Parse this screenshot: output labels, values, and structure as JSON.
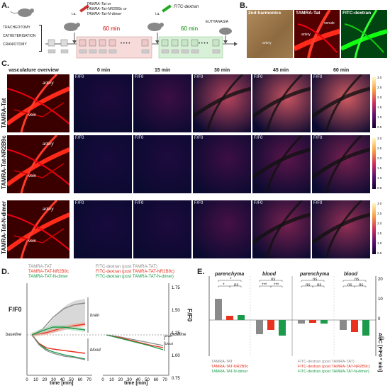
{
  "panels": {
    "a": "A.",
    "b": "B.",
    "c": "C.",
    "d": "D.",
    "e": "E."
  },
  "panelA": {
    "procedures": [
      "TRACHEOTOMY",
      "CATHETERISATION",
      "CRANIOTOMY"
    ],
    "ia1": "i.a.",
    "ia2": "i.a.",
    "injected_peptides": [
      "TAMRA-Tat or",
      "TAMRA-Tat-NR2B9c or",
      "TAMRA-Tat-N-dimer"
    ],
    "fitc": "FITC-dextran",
    "period1": "60 min",
    "period2": "60 min",
    "euthanasia": "EUTHANASIA",
    "dots": "• • • •"
  },
  "panelB": {
    "titles": [
      "2nd harmonics",
      "TAMRA-Tat",
      "FITC-dextran"
    ],
    "artery": "artery",
    "vein": "venule"
  },
  "panelC": {
    "vasc_header": "vasculature overview",
    "times": [
      "0 min",
      "15 min",
      "30 min",
      "45 min",
      "60 min"
    ],
    "ff": "F/F0",
    "rows": [
      "TAMRA-Tat",
      "TAMRA-Tat-NR2B9c",
      "TAMRA-Tat-N-dimer"
    ],
    "artery": "artery",
    "vein": "vein",
    "colorbar_ticks": [
      "3.0",
      "2.5",
      "2.0",
      "1.5",
      "1.0",
      "0.5"
    ]
  },
  "panelD": {
    "legend_left": [
      "TAMRA-TAT",
      "TAMRA-TAT-NR2B9c",
      "TAMRA-TAT-N-dimer"
    ],
    "legend_right": [
      "FITC-dextran (post TAMRA-TAT)",
      "FITC-dextran (post TAMRA-TAT-NR2B9c)",
      "FITC-dextran (post TAMRA-TAT-N-dimer)"
    ],
    "ylabel_left": "F/F0",
    "ylabel_right": "F/F0",
    "xlabel": "time [min]",
    "yticks_right": [
      "1.75",
      "1.50",
      "1.25",
      "1.00",
      "0.75"
    ],
    "xticks": [
      "0",
      "10",
      "20",
      "30",
      "40",
      "50",
      "60",
      "70"
    ],
    "baseline": "baseline",
    "brain": "brain",
    "blood": "blood"
  },
  "panelE": {
    "ylabel": "AUC [F/F0 * min]",
    "yticks": [
      "20",
      "10",
      "0",
      "-10"
    ],
    "groups": [
      "parenchyma",
      "blood",
      "parenchyma",
      "blood"
    ],
    "sig": [
      "*",
      "*",
      "ns",
      "ns",
      "***",
      "***",
      "ns",
      "ns",
      "ns",
      "ns",
      "ns",
      "ns"
    ],
    "legend_left": [
      "TAMRA-TAT",
      "TAMRA-TAT-NR2B9c",
      "TAMRA-TAT-N-dimer"
    ],
    "legend_right": [
      "FITC-dextran (post TAMRA-TAT)",
      "FITC-dextran (post TAMRA-TAT-NR2B9c)",
      "FITC-dextran (post TAMRA-TAT-N-dimer)"
    ]
  },
  "colors": {
    "gray": "#8a8a8a",
    "red": "#e8321e",
    "green": "#1a9a4a",
    "pinkbox": "#f7dada",
    "greenbox": "#d7f0d7"
  }
}
